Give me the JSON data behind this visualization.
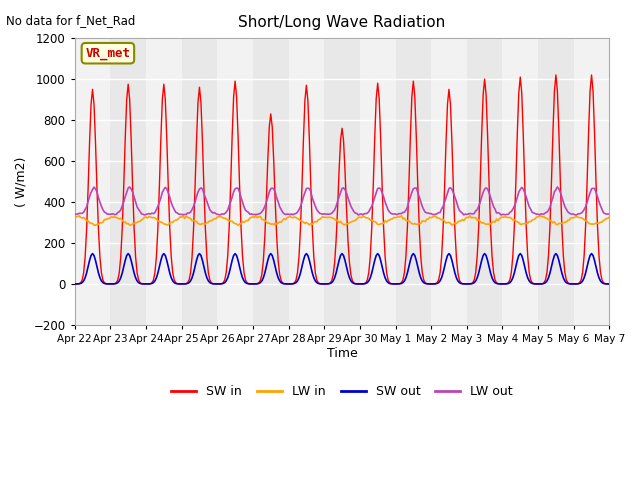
{
  "title": "Short/Long Wave Radiation",
  "ylabel": "( W/m2)",
  "xlabel": "Time",
  "ylim": [
    -200,
    1200
  ],
  "yticks": [
    -200,
    0,
    200,
    400,
    600,
    800,
    1000,
    1200
  ],
  "annotation_text": "No data for f_Net_Rad",
  "legend_box_label": "VR_met",
  "colors": {
    "SW_in": "#FF0000",
    "LW_in": "#FFA500",
    "SW_out": "#0000CC",
    "LW_out": "#BB44BB"
  },
  "num_days": 16,
  "SW_in_peaks": [
    950,
    975,
    975,
    960,
    990,
    830,
    970,
    760,
    980,
    990,
    950,
    1000,
    1010,
    1020,
    1020,
    5
  ],
  "SW_in_sigma": 2.5,
  "SW_out_peak": 148,
  "SW_out_sigma": 2.8,
  "LW_in_base": 310,
  "LW_in_amp": 18,
  "LW_out_base_night": 340,
  "LW_out_peak_day": 470,
  "LW_out_peak_hour": 13,
  "LW_out_sigma": 3.2,
  "ticklabels": [
    "Apr 22",
    "Apr 23",
    "Apr 24",
    "Apr 25",
    "Apr 26",
    "Apr 27",
    "Apr 28",
    "Apr 29",
    "Apr 30",
    "May 1",
    "May 2",
    "May 3",
    "May 4",
    "May 5",
    "May 6",
    "May 7"
  ],
  "plot_bg": "#E8E8E8",
  "fig_bg": "#FFFFFF",
  "band_color": "#FFFFFF",
  "band_alpha": 0.5
}
